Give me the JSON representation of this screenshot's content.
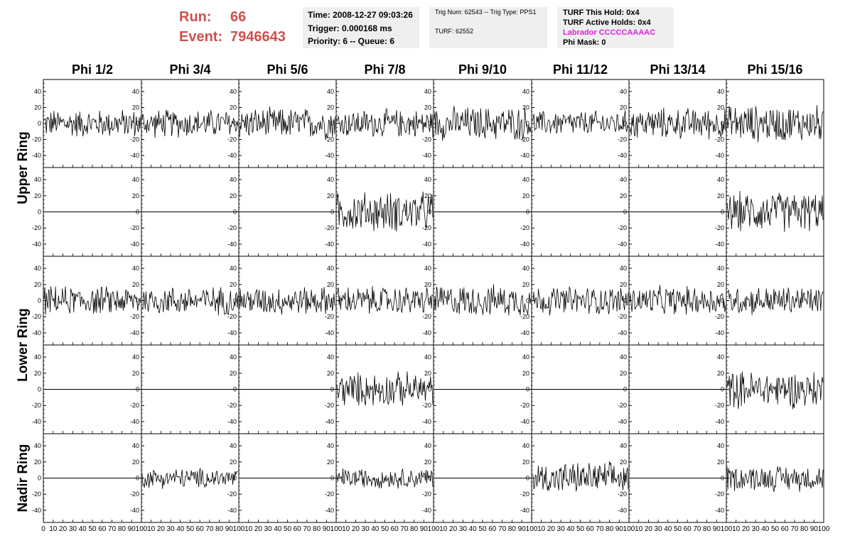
{
  "header": {
    "run_label": "Run:",
    "run_value": "66",
    "event_label": "Event:",
    "event_value": "7946643"
  },
  "time_box": {
    "time": "Time: 2008-12-27 09:03:26",
    "trigger": "Trigger: 0.000168 ms",
    "priority": "Priority: 6 -- Queue: 6"
  },
  "trig_box": {
    "trig_line": "Trig Num: 62543 -- Trig Type: PPS1",
    "turf_line": "TURF: 62552"
  },
  "turf_box": {
    "this_hold": "TURF This Hold: 0x4",
    "active_holds": "TURF Active Holds: 0x4",
    "labrador": "Labrador CCCCCAAAAC",
    "phi_mask": "Phi Mask: 0"
  },
  "columns": [
    "Phi 1/2",
    "Phi 3/4",
    "Phi 5/6",
    "Phi 7/8",
    "Phi 9/10",
    "Phi 11/12",
    "Phi 13/14",
    "Phi 15/16"
  ],
  "ring_labels": [
    "Upper Ring",
    "Lower Ring",
    "Nadir Ring"
  ],
  "axes": {
    "y_ticks": [
      "40",
      "20",
      "0",
      "-20",
      "-40"
    ],
    "x_ticks_left": [
      "0",
      "10",
      "20",
      "30",
      "40",
      "50",
      "60",
      "70",
      "80",
      "90",
      "100"
    ],
    "x_ticks_inner": [
      "10",
      "20",
      "30",
      "40",
      "50",
      "60",
      "70",
      "80",
      "90",
      "100"
    ]
  },
  "panels": {
    "active_rows": [
      [
        1,
        1,
        1,
        1,
        1,
        1,
        1,
        1
      ],
      [
        0,
        0,
        0,
        1,
        0,
        0,
        0,
        1
      ],
      [
        1,
        1,
        1,
        1,
        1,
        1,
        1,
        1
      ],
      [
        0,
        0,
        0,
        1,
        0,
        0,
        0,
        1
      ],
      [
        0,
        1,
        0,
        1,
        0,
        1,
        0,
        1
      ]
    ],
    "amplitudes": [
      [
        20,
        20,
        22,
        20,
        24,
        18,
        22,
        26
      ],
      [
        0,
        0,
        0,
        28,
        0,
        0,
        0,
        28
      ],
      [
        20,
        20,
        20,
        20,
        22,
        20,
        20,
        20
      ],
      [
        0,
        0,
        0,
        24,
        0,
        0,
        0,
        26
      ],
      [
        0,
        14,
        0,
        14,
        0,
        22,
        0,
        18
      ]
    ]
  },
  "colors": {
    "run_text": "#cf4f4f",
    "labrador_text": "#e020e0",
    "info_box_bg": "#efefef",
    "trace": "#000000"
  }
}
